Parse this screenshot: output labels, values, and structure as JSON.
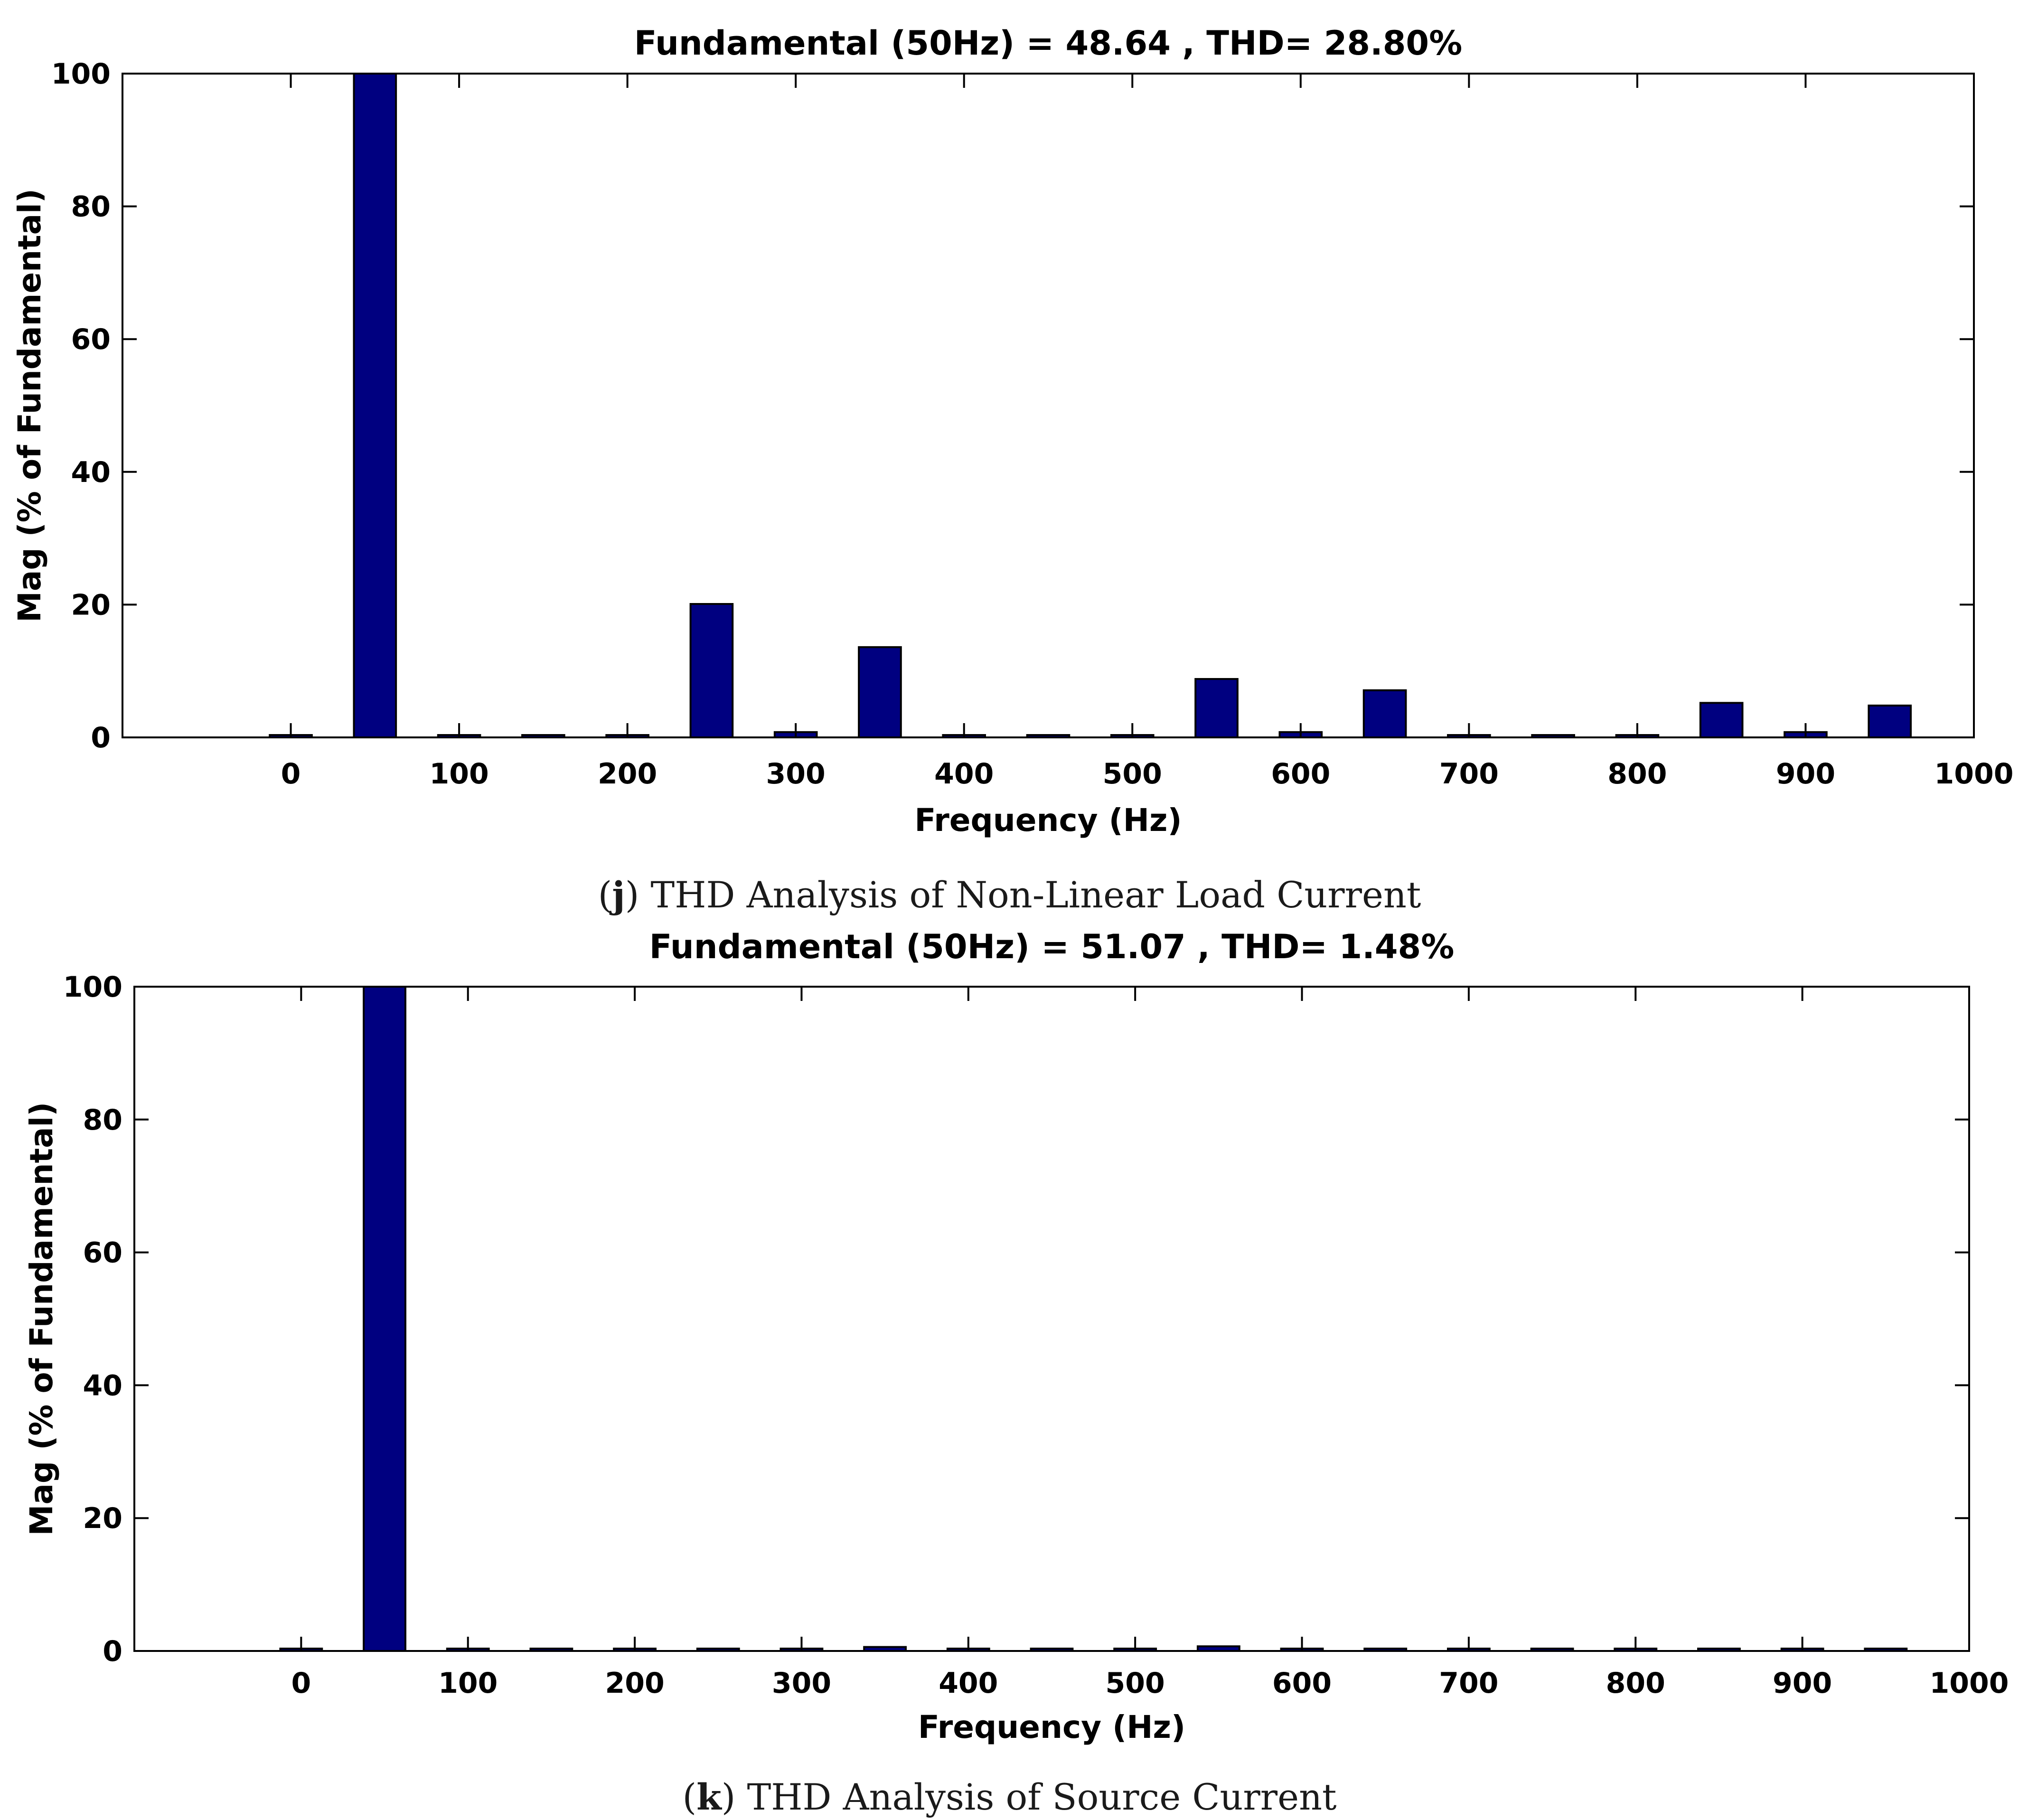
{
  "chart_data": [
    {
      "id": "j",
      "type": "bar",
      "title": "Fundamental (50Hz) = 48.64 , THD= 28.80%",
      "xlabel": "Frequency (Hz)",
      "ylabel": "Mag (% of Fundamental)",
      "xlim": [
        -100,
        1000
      ],
      "ylim": [
        0,
        100
      ],
      "xticks": [
        0,
        100,
        200,
        300,
        400,
        500,
        600,
        700,
        800,
        900,
        1000
      ],
      "yticks": [
        0,
        20,
        40,
        60,
        80,
        100
      ],
      "x": [
        0,
        50,
        100,
        150,
        200,
        250,
        300,
        350,
        400,
        450,
        500,
        550,
        600,
        650,
        700,
        750,
        800,
        850,
        900,
        950
      ],
      "values": [
        0.3,
        100,
        0.3,
        0.3,
        0.3,
        20.1,
        0.8,
        13.6,
        0.3,
        0.3,
        0.3,
        8.8,
        0.8,
        7.1,
        0.3,
        0.3,
        0.3,
        5.2,
        0.8,
        4.8
      ],
      "bar_color": "#000080",
      "caption_letter": "j",
      "caption_text": "THD Analysis of Non-Linear Load Current"
    },
    {
      "id": "k",
      "type": "bar",
      "title": "Fundamental (50Hz) = 51.07 , THD= 1.48%",
      "xlabel": "Frequency (Hz)",
      "ylabel": "Mag (% of Fundamental)",
      "xlim": [
        -100,
        1000
      ],
      "ylim": [
        0,
        100
      ],
      "xticks": [
        0,
        100,
        200,
        300,
        400,
        500,
        600,
        700,
        800,
        900,
        1000
      ],
      "yticks": [
        0,
        20,
        40,
        60,
        80,
        100
      ],
      "x": [
        0,
        50,
        100,
        150,
        200,
        250,
        300,
        350,
        400,
        450,
        500,
        550,
        600,
        650,
        700,
        750,
        800,
        850,
        900,
        950
      ],
      "values": [
        0.2,
        100,
        0.2,
        0.2,
        0.2,
        0.2,
        0.2,
        0.6,
        0.2,
        0.2,
        0.2,
        0.7,
        0.2,
        0.2,
        0.2,
        0.2,
        0.2,
        0.2,
        0.2,
        0.2
      ],
      "bar_color": "#000080",
      "caption_letter": "k",
      "caption_text": "THD Analysis of Source Current"
    }
  ]
}
